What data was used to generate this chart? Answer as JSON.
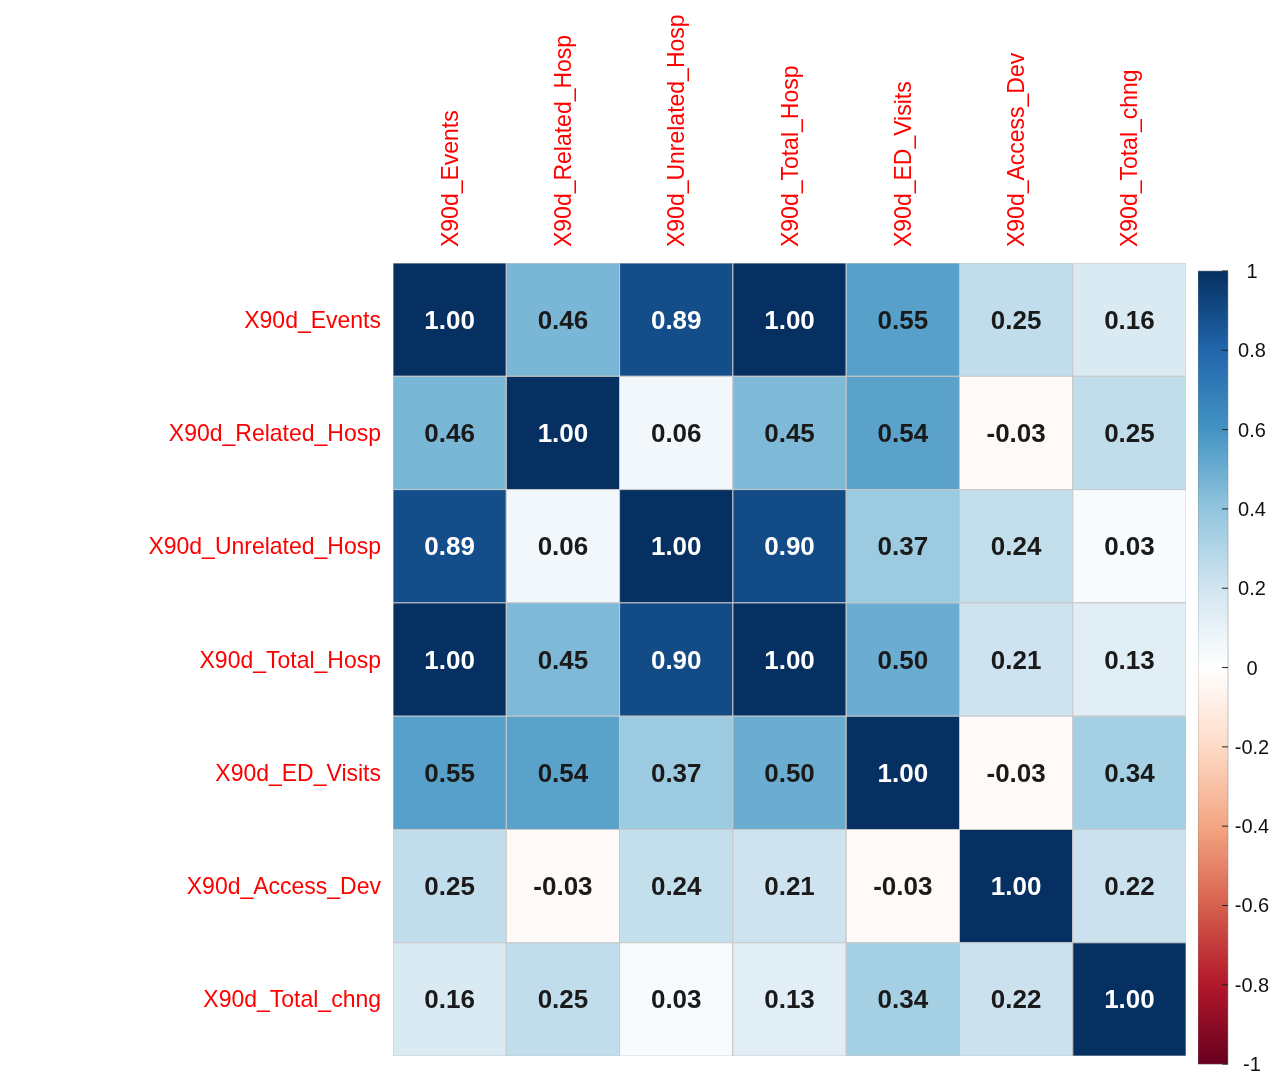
{
  "chart_data": {
    "type": "heatmap",
    "categories": [
      "X90d_Events",
      "X90d_Related_Hosp",
      "X90d_Unrelated_Hosp",
      "X90d_Total_Hosp",
      "X90d_ED_Visits",
      "X90d_Access_Dev",
      "X90d_Total_chng"
    ],
    "y_categories": [
      "X90d_Events",
      "X90d_Related_Hosp",
      "X90d_Unrelated_Hosp",
      "X90d_Total_Hosp",
      "X90d_ED_Visits",
      "X90d_Access_Dev",
      "X90d_Total_chng"
    ],
    "cells": [
      [
        1.0,
        0.46,
        0.89,
        1.0,
        0.55,
        0.25,
        0.16
      ],
      [
        0.46,
        1.0,
        0.06,
        0.45,
        0.54,
        -0.03,
        0.25
      ],
      [
        0.89,
        0.06,
        1.0,
        0.9,
        0.37,
        0.24,
        0.03
      ],
      [
        1.0,
        0.45,
        0.9,
        1.0,
        0.5,
        0.21,
        0.13
      ],
      [
        0.55,
        0.54,
        0.37,
        0.5,
        1.0,
        -0.03,
        0.34
      ],
      [
        0.25,
        -0.03,
        0.24,
        0.21,
        -0.03,
        1.0,
        0.22
      ],
      [
        0.16,
        0.25,
        0.03,
        0.13,
        0.34,
        0.22,
        1.0
      ]
    ],
    "cell_labels": [
      [
        "1.00",
        "0.46",
        "0.89",
        "1.00",
        "0.55",
        "0.25",
        "0.16"
      ],
      [
        "0.46",
        "1.00",
        "0.06",
        "0.45",
        "0.54",
        "-0.03",
        "0.25"
      ],
      [
        "0.89",
        "0.06",
        "1.00",
        "0.90",
        "0.37",
        "0.24",
        "0.03"
      ],
      [
        "1.00",
        "0.45",
        "0.90",
        "1.00",
        "0.50",
        "0.21",
        "0.13"
      ],
      [
        "0.55",
        "0.54",
        "0.37",
        "0.50",
        "1.00",
        "-0.03",
        "0.34"
      ],
      [
        "0.25",
        "-0.03",
        "0.24",
        "0.21",
        "-0.03",
        "1.00",
        "0.22"
      ],
      [
        "0.16",
        "0.25",
        "0.03",
        "0.13",
        "0.34",
        "0.22",
        "1.00"
      ]
    ],
    "clim": [
      -1,
      1
    ],
    "cticks": [
      -1,
      -0.8,
      -0.6,
      -0.4,
      -0.2,
      0,
      0.2,
      0.4,
      0.6,
      0.8,
      1
    ]
  }
}
